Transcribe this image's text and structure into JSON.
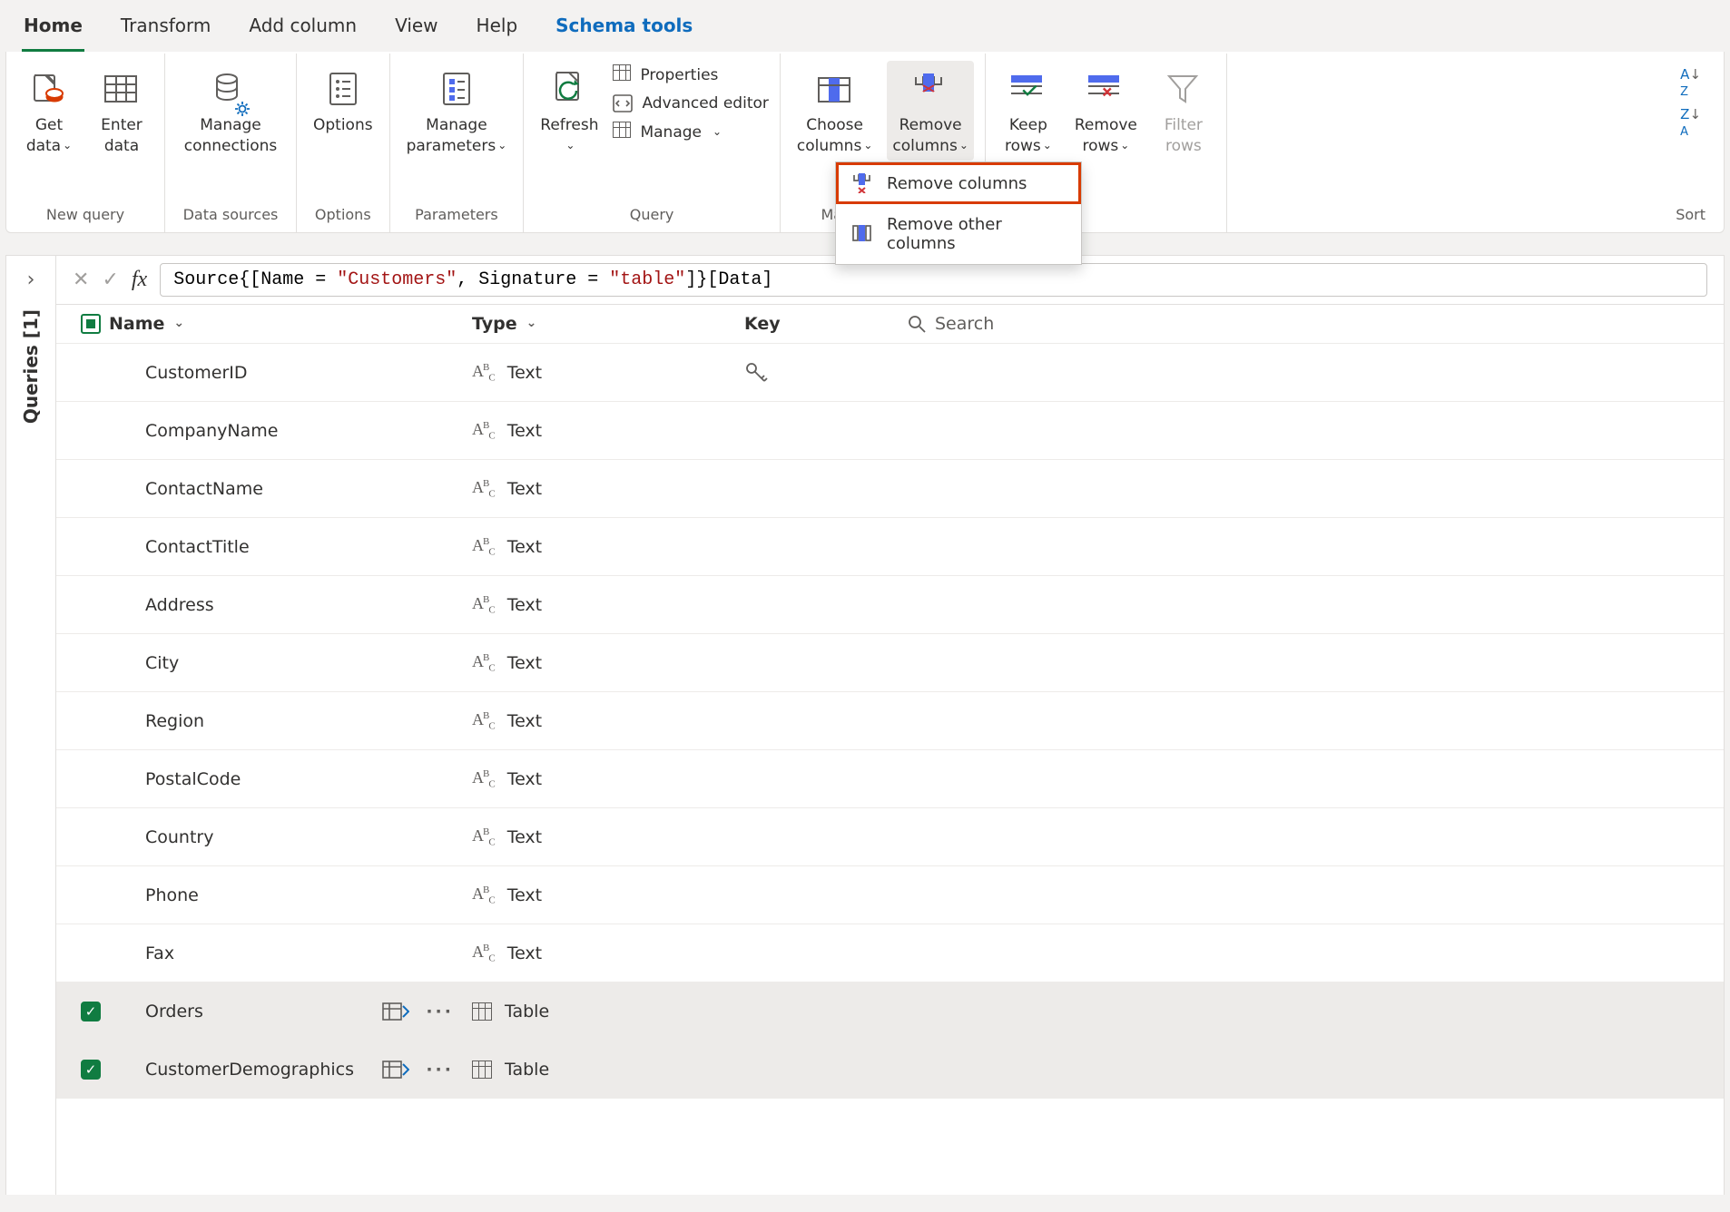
{
  "tabs": {
    "home": "Home",
    "transform": "Transform",
    "add_column": "Add column",
    "view": "View",
    "help": "Help",
    "schema_tools": "Schema tools"
  },
  "ribbon": {
    "groups": {
      "new_query": "New query",
      "data_sources": "Data sources",
      "options": "Options",
      "parameters": "Parameters",
      "query": "Query",
      "manage_columns": "Manage columns",
      "sort": "Sort"
    },
    "buttons": {
      "get_data": "Get\ndata",
      "enter_data": "Enter\ndata",
      "manage_connections": "Manage\nconnections",
      "options_btn": "Options",
      "manage_parameters": "Manage\nparameters",
      "refresh": "Refresh",
      "properties": "Properties",
      "advanced_editor": "Advanced editor",
      "manage": "Manage",
      "choose_columns": "Choose\ncolumns",
      "remove_columns": "Remove\ncolumns",
      "keep_rows": "Keep\nrows",
      "remove_rows": "Remove\nrows",
      "filter_rows": "Filter\nrows"
    }
  },
  "dropdown": {
    "remove_columns": "Remove columns",
    "remove_other_columns": "Remove other columns"
  },
  "side": {
    "queries_label": "Queries [1]"
  },
  "formula": {
    "prefix": "Source{[Name = ",
    "str1": "\"Customers\"",
    "mid": ", Signature = ",
    "str2": "\"table\"",
    "suffix": "]}[Data]"
  },
  "headers": {
    "name": "Name",
    "type": "Type",
    "key": "Key",
    "search": "Search"
  },
  "type_labels": {
    "text": "Text",
    "table": "Table"
  },
  "rows": [
    {
      "name": "CustomerID",
      "type": "text",
      "key": true,
      "selected": false,
      "expandable": false
    },
    {
      "name": "CompanyName",
      "type": "text",
      "key": false,
      "selected": false,
      "expandable": false
    },
    {
      "name": "ContactName",
      "type": "text",
      "key": false,
      "selected": false,
      "expandable": false
    },
    {
      "name": "ContactTitle",
      "type": "text",
      "key": false,
      "selected": false,
      "expandable": false
    },
    {
      "name": "Address",
      "type": "text",
      "key": false,
      "selected": false,
      "expandable": false
    },
    {
      "name": "City",
      "type": "text",
      "key": false,
      "selected": false,
      "expandable": false
    },
    {
      "name": "Region",
      "type": "text",
      "key": false,
      "selected": false,
      "expandable": false
    },
    {
      "name": "PostalCode",
      "type": "text",
      "key": false,
      "selected": false,
      "expandable": false
    },
    {
      "name": "Country",
      "type": "text",
      "key": false,
      "selected": false,
      "expandable": false
    },
    {
      "name": "Phone",
      "type": "text",
      "key": false,
      "selected": false,
      "expandable": false
    },
    {
      "name": "Fax",
      "type": "text",
      "key": false,
      "selected": false,
      "expandable": false
    },
    {
      "name": "Orders",
      "type": "table",
      "key": false,
      "selected": true,
      "expandable": true
    },
    {
      "name": "CustomerDemographics",
      "type": "table",
      "key": false,
      "selected": true,
      "expandable": true
    }
  ],
  "colors": {
    "accent_green": "#107c41",
    "accent_blue": "#0f6cbd",
    "accent_orange": "#d83b01",
    "accent_red": "#a31515"
  }
}
